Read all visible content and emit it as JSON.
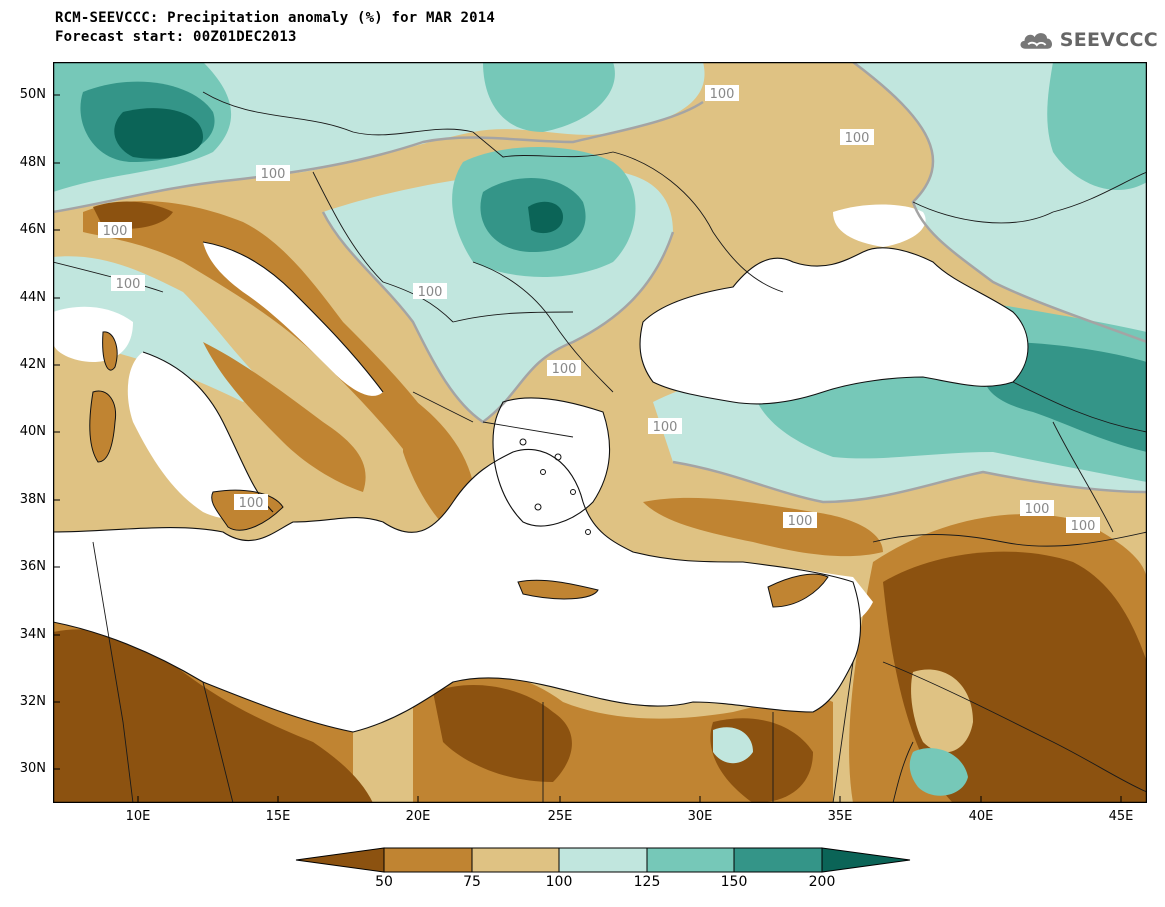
{
  "title": "RCM-SEEVCCC: Precipitation anomaly (%) for MAR 2014",
  "subtitle": "Forecast start: 00Z01DEC2013",
  "logo": {
    "text": "SEEVCCC",
    "icon": "cloud-icon"
  },
  "map": {
    "lat_labels": [
      "50N",
      "48N",
      "46N",
      "44N",
      "42N",
      "40N",
      "38N",
      "36N",
      "34N",
      "32N",
      "30N"
    ],
    "lon_labels": [
      "10E",
      "15E",
      "20E",
      "25E",
      "30E",
      "35E",
      "40E",
      "45E"
    ],
    "contour_labels": [
      "100",
      "100",
      "100",
      "100",
      "100",
      "100",
      "100",
      "100",
      "100",
      "100",
      "100",
      "100"
    ],
    "colors": {
      "very_dry": "#8c5210",
      "dry": "#c08432",
      "slightly_dry": "#dfc283",
      "slightly_wet": "#c1e6de",
      "wet": "#76c8b8",
      "very_wet": "#349588",
      "extreme_wet": "#0b6457",
      "sea": "#ffffff"
    }
  },
  "colorbar": {
    "labels": [
      "50",
      "75",
      "100",
      "125",
      "150",
      "200"
    ],
    "colors": [
      "#8c5210",
      "#c08432",
      "#dfc283",
      "#c1e6de",
      "#76c8b8",
      "#349588",
      "#0b6457"
    ]
  }
}
